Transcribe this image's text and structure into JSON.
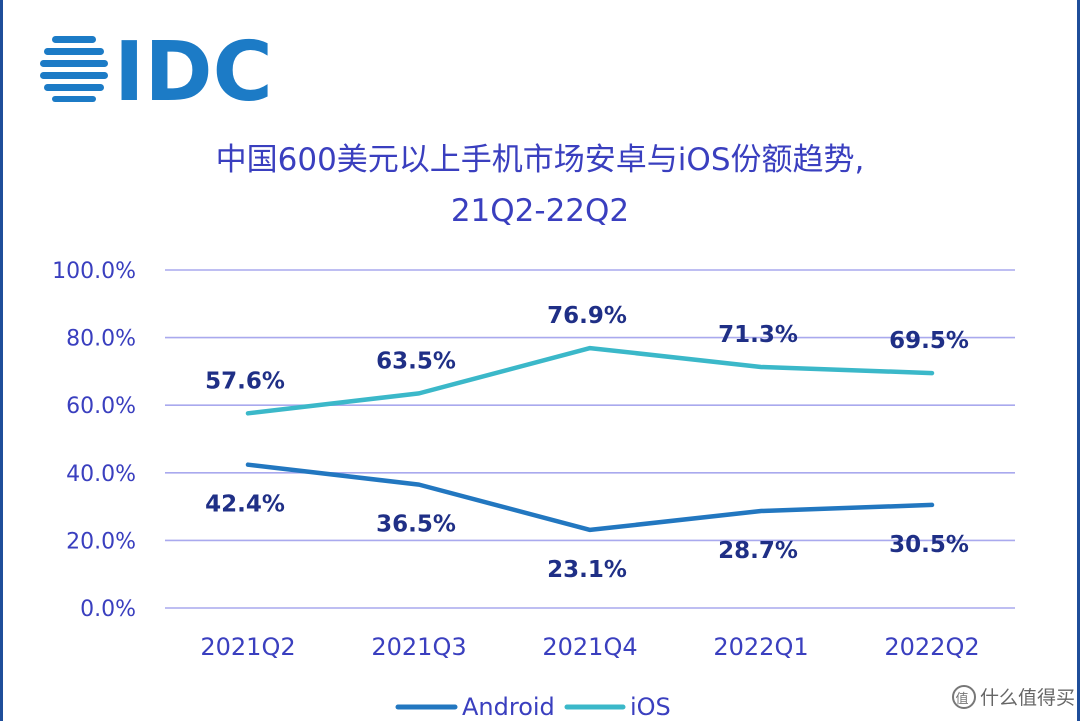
{
  "logo": {
    "text": "IDC",
    "color": "#1c7bc6"
  },
  "watermark": {
    "text": "什么值得买",
    "icon": "smzdm-logo-icon"
  },
  "chart_data": {
    "type": "line",
    "title": "中国600美元以上手机市场安卓与iOS份额趋势,",
    "subtitle": "21Q2-22Q2",
    "categories": [
      "2021Q2",
      "2021Q3",
      "2021Q4",
      "2022Q1",
      "2022Q2"
    ],
    "y_ticks": [
      "0.0%",
      "20.0%",
      "40.0%",
      "60.0%",
      "80.0%",
      "100.0%"
    ],
    "ylim": [
      0,
      100
    ],
    "grid": true,
    "legend_position": "bottom",
    "series": [
      {
        "name": "Android",
        "color": "#2277c0",
        "values": [
          42.4,
          36.5,
          23.1,
          28.7,
          30.5
        ],
        "labels": [
          "42.4%",
          "36.5%",
          "23.1%",
          "28.7%",
          "30.5%"
        ]
      },
      {
        "name": "iOS",
        "color": "#3bb8c9",
        "values": [
          57.6,
          63.5,
          76.9,
          71.3,
          69.5
        ],
        "labels": [
          "57.6%",
          "63.5%",
          "76.9%",
          "71.3%",
          "69.5%"
        ]
      }
    ]
  }
}
